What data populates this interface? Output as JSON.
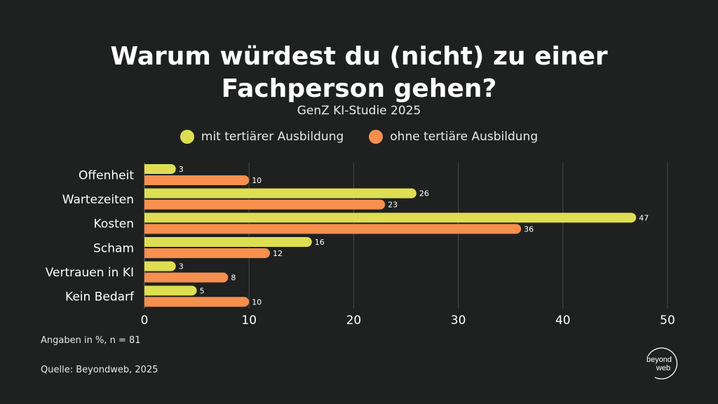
{
  "header": {
    "title_line1": "Warum würdest du (nicht) zu einer",
    "title_line2": "Fachperson gehen?",
    "subtitle": "GenZ KI-Studie 2025"
  },
  "footer": {
    "note": "Angaben in %, n = 81",
    "source": "Quelle: Beyondweb, 2025",
    "logo_line1": "beyond",
    "logo_line2": "web"
  },
  "colors": {
    "background": "#1f2120",
    "series1": "#dede52",
    "series2": "#f78f4e",
    "grid": "#4a4c4b"
  },
  "chart_data": {
    "type": "bar",
    "orientation": "horizontal",
    "title": "Warum würdest du (nicht) zu einer Fachperson gehen?",
    "subtitle": "GenZ KI-Studie 2025",
    "categories": [
      "Offenheit",
      "Wartezeiten",
      "Kosten",
      "Scham",
      "Vertrauen in KI",
      "Kein Bedarf"
    ],
    "series": [
      {
        "name": "mit tertiärer Ausbildung",
        "color": "#dede52",
        "values": [
          3,
          26,
          47,
          16,
          3,
          5
        ]
      },
      {
        "name": "ohne tertiäre Ausbildung",
        "color": "#f78f4e",
        "values": [
          10,
          23,
          36,
          12,
          8,
          10
        ]
      }
    ],
    "xlim": [
      0,
      50
    ],
    "xticks": [
      0,
      10,
      20,
      30,
      40,
      50
    ],
    "grid": true,
    "legend": "top-center",
    "xlabel": "",
    "ylabel": ""
  }
}
